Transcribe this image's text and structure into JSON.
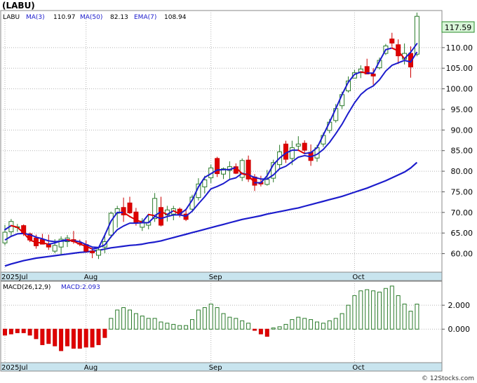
{
  "chart_data": [
    {
      "type": "candlestick",
      "title": "(LABU)",
      "legend": {
        "symbol": "LABU",
        "ma3_label": "MA(3)",
        "ma3_value": "110.97",
        "ma50_label": "MA(50)",
        "ma50_value": "82.13",
        "ema7_label": "EMA(7)",
        "ema7_value": "108.94"
      },
      "last_price": "117.59",
      "ylim": [
        55.5,
        119
      ],
      "y_ticks": [
        "110.00",
        "105.00",
        "100.00",
        "95.00",
        "90.00",
        "85.00",
        "80.00",
        "75.00",
        "70.00",
        "65.00",
        "60.00"
      ],
      "x_labels": [
        {
          "label": "2025Jul",
          "index": 0
        },
        {
          "label": "Aug",
          "index": 13
        },
        {
          "label": "Sep",
          "index": 33
        },
        {
          "label": "Oct",
          "index": 56
        }
      ],
      "candles": [
        [
          62.6,
          67.0,
          62.0,
          65.2
        ],
        [
          65.3,
          68.4,
          64.2,
          67.8
        ],
        [
          66.4,
          67.2,
          65.3,
          66.5
        ],
        [
          66.8,
          67.1,
          64.3,
          64.8
        ],
        [
          64.8,
          65.1,
          62.8,
          63.3
        ],
        [
          63.8,
          64.6,
          61.2,
          61.9
        ],
        [
          63.4,
          64.8,
          62.3,
          62.3
        ],
        [
          62.3,
          64.6,
          60.9,
          61.6
        ],
        [
          60.6,
          63.5,
          60.1,
          62.0
        ],
        [
          61.6,
          64.2,
          59.8,
          63.5
        ],
        [
          62.9,
          64.5,
          61.6,
          63.8
        ],
        [
          63.4,
          65.5,
          62.4,
          62.9
        ],
        [
          62.6,
          63.4,
          61.8,
          62.3
        ],
        [
          62.2,
          63.2,
          60.3,
          60.6
        ],
        [
          60.6,
          61.4,
          58.9,
          60.2
        ],
        [
          59.6,
          61.5,
          58.7,
          60.9
        ],
        [
          61.6,
          64.2,
          60.1,
          62.9
        ],
        [
          64.5,
          70.2,
          63.8,
          69.8
        ],
        [
          69.8,
          71.6,
          66.3,
          70.9
        ],
        [
          71.2,
          73.6,
          67.7,
          69.4
        ],
        [
          72.3,
          73.8,
          69.6,
          69.9
        ],
        [
          70.1,
          71.1,
          66.8,
          67.4
        ],
        [
          66.4,
          68.6,
          65.5,
          67.9
        ],
        [
          66.9,
          69.3,
          65.9,
          67.6
        ],
        [
          68.5,
          74.7,
          67.7,
          73.4
        ],
        [
          71.2,
          73.8,
          66.6,
          66.9
        ],
        [
          69.4,
          71.6,
          67.8,
          70.6
        ],
        [
          69.6,
          71.6,
          68.1,
          70.9
        ],
        [
          70.8,
          71.2,
          68.8,
          69.6
        ],
        [
          69.6,
          70.6,
          67.9,
          68.3
        ],
        [
          70.8,
          74.3,
          70.1,
          73.7
        ],
        [
          73.6,
          78.3,
          72.9,
          76.9
        ],
        [
          76.2,
          78.9,
          74.6,
          77.9
        ],
        [
          78.4,
          81.6,
          77.1,
          80.8
        ],
        [
          83.1,
          83.5,
          78.6,
          79.4
        ],
        [
          79.3,
          80.9,
          78.1,
          80.6
        ],
        [
          80.2,
          82.4,
          77.9,
          81.1
        ],
        [
          81.1,
          81.9,
          79.3,
          79.5
        ],
        [
          78.5,
          83.1,
          77.6,
          82.6
        ],
        [
          82.7,
          83.8,
          77.4,
          78.1
        ],
        [
          78.6,
          79.3,
          75.2,
          76.6
        ],
        [
          77.3,
          78.9,
          76.3,
          76.9
        ],
        [
          76.8,
          80.3,
          76.5,
          78.0
        ],
        [
          78.3,
          82.8,
          77.3,
          82.1
        ],
        [
          81.6,
          86.4,
          80.5,
          84.7
        ],
        [
          86.6,
          87.4,
          82.0,
          82.9
        ],
        [
          83.1,
          87.4,
          81.5,
          85.7
        ],
        [
          86.1,
          88.5,
          85.1,
          86.6
        ],
        [
          86.8,
          87.5,
          84.3,
          85.1
        ],
        [
          84.6,
          86.5,
          81.3,
          82.6
        ],
        [
          83.2,
          86.4,
          82.3,
          85.7
        ],
        [
          86.6,
          89.4,
          85.9,
          88.7
        ],
        [
          89.9,
          92.7,
          89.2,
          91.9
        ],
        [
          92.3,
          96.3,
          91.8,
          95.2
        ],
        [
          95.9,
          99.3,
          95.1,
          98.6
        ],
        [
          99.5,
          103.0,
          99.1,
          101.9
        ],
        [
          102.6,
          104.6,
          102.6,
          103.9
        ],
        [
          103.9,
          105.7,
          102.6,
          104.8
        ],
        [
          105.4,
          107.3,
          103.5,
          103.6
        ],
        [
          103.6,
          105.0,
          101.0,
          103.1
        ],
        [
          105.1,
          107.6,
          104.7,
          106.9
        ],
        [
          108.6,
          110.9,
          108.2,
          110.4
        ],
        [
          112.1,
          113.6,
          110.2,
          111.1
        ],
        [
          110.7,
          112.0,
          106.0,
          108.0
        ],
        [
          107.2,
          111.0,
          105.9,
          108.6
        ],
        [
          108.6,
          110.3,
          102.7,
          105.3
        ],
        [
          108.4,
          118.5,
          107.9,
          117.6
        ]
      ],
      "ma3": [
        65.8,
        66.8,
        66.4,
        65.0,
        63.3,
        62.7,
        62.6,
        62.3,
        62.6,
        63.1,
        63.4,
        63.0,
        62.3,
        61.8,
        61.1,
        61.4,
        64.5,
        67.9,
        70.0,
        70.0,
        69.0,
        68.2,
        67.6,
        69.5,
        69.2,
        70.2,
        69.5,
        70.4,
        69.6,
        70.7,
        73.0,
        76.2,
        78.5,
        79.4,
        80.3,
        80.4,
        80.4,
        80.9,
        79.4,
        79.0,
        77.2,
        77.2,
        78.9,
        81.6,
        83.2,
        84.4,
        85.1,
        85.1,
        84.3,
        84.5,
        85.7,
        88.8,
        91.9,
        95.2,
        98.6,
        101.6,
        103.5,
        104.1,
        103.8,
        103.8,
        106.7,
        109.5,
        109.9,
        109.2,
        107.3,
        108.9,
        110.97
      ],
      "ema7": [
        63.3,
        64.2,
        64.8,
        64.9,
        64.6,
        64.0,
        63.6,
        63.1,
        62.9,
        63.0,
        63.2,
        63.1,
        62.9,
        62.2,
        61.6,
        61.5,
        62.1,
        64.1,
        65.8,
        66.7,
        67.4,
        67.4,
        67.5,
        67.5,
        69.0,
        68.5,
        69.0,
        69.4,
        69.4,
        69.1,
        70.3,
        72.1,
        73.8,
        75.7,
        76.3,
        77.0,
        78.0,
        78.4,
        79.5,
        79.1,
        78.5,
        78.1,
        78.1,
        79.1,
        80.6,
        81.2,
        82.3,
        83.4,
        83.8,
        83.5,
        84.1,
        85.3,
        87.0,
        89.1,
        91.4,
        94.1,
        96.6,
        98.6,
        99.9,
        100.7,
        102.2,
        104.3,
        105.7,
        106.3,
        106.9,
        106.5,
        108.94
      ],
      "ma50": [
        57.0,
        57.5,
        57.9,
        58.3,
        58.6,
        58.9,
        59.1,
        59.3,
        59.5,
        59.7,
        59.9,
        60.1,
        60.3,
        60.4,
        60.6,
        60.8,
        61.1,
        61.4,
        61.6,
        61.8,
        62.0,
        62.1,
        62.3,
        62.6,
        62.8,
        63.1,
        63.5,
        63.9,
        64.3,
        64.7,
        65.1,
        65.5,
        65.9,
        66.3,
        66.7,
        67.1,
        67.5,
        67.9,
        68.3,
        68.6,
        68.9,
        69.2,
        69.6,
        69.9,
        70.2,
        70.5,
        70.8,
        71.1,
        71.5,
        71.9,
        72.3,
        72.7,
        73.1,
        73.5,
        73.9,
        74.4,
        74.9,
        75.4,
        75.9,
        76.5,
        77.1,
        77.7,
        78.4,
        79.1,
        79.8,
        80.8,
        82.13
      ]
    },
    {
      "type": "bar",
      "title": "MACD(26,12,9)",
      "series_label": "MACD:2.093",
      "last_value": 2.093,
      "ylim": [
        -2.8,
        4.0
      ],
      "y_ticks": [
        "2.000",
        "0.000"
      ],
      "x_labels": [
        {
          "label": "2025Jul",
          "index": 0
        },
        {
          "label": "Aug",
          "index": 13
        },
        {
          "label": "Sep",
          "index": 33
        },
        {
          "label": "Oct",
          "index": 56
        }
      ],
      "values": [
        -0.5,
        -0.4,
        -0.3,
        -0.3,
        -0.5,
        -0.8,
        -1.3,
        -1.2,
        -1.4,
        -1.8,
        -1.4,
        -1.6,
        -1.6,
        -1.5,
        -1.5,
        -1.3,
        -0.7,
        0.9,
        1.6,
        1.8,
        1.6,
        1.3,
        1.1,
        0.9,
        0.9,
        0.6,
        0.5,
        0.4,
        0.3,
        0.3,
        0.8,
        1.6,
        1.8,
        2.1,
        1.8,
        1.3,
        1.0,
        0.9,
        0.7,
        0.5,
        -0.1,
        -0.4,
        -0.6,
        0.1,
        0.2,
        0.4,
        0.8,
        1.0,
        0.9,
        0.8,
        0.6,
        0.5,
        0.7,
        0.9,
        1.3,
        2.0,
        2.8,
        3.2,
        3.3,
        3.2,
        3.1,
        3.4,
        3.6,
        2.8,
        2.1,
        1.5,
        2.093
      ]
    }
  ],
  "watermark": "© 12Stocks.com"
}
